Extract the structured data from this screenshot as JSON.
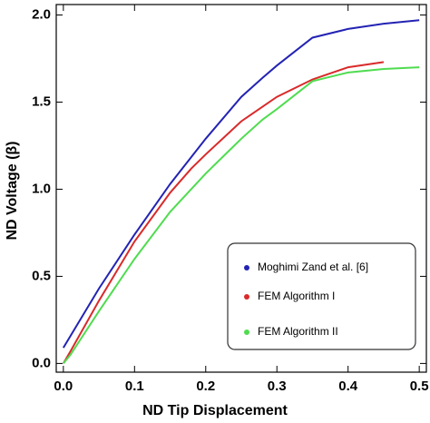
{
  "chart_data": {
    "type": "line",
    "xlabel": "ND Tip Displacement",
    "ylabel": "ND Voltage (β)",
    "xlim": [
      -0.01,
      0.51
    ],
    "ylim": [
      -0.05,
      2.06
    ],
    "xticks": [
      {
        "value": 0,
        "label": "0.0"
      },
      0.1,
      0.2,
      0.3,
      0.4,
      0.5
    ],
    "yticks": [
      {
        "value": 0,
        "label": "0.0"
      },
      0.5,
      {
        "value": 1,
        "label": "1.0"
      },
      1.5,
      {
        "value": 2,
        "label": "2.0"
      }
    ],
    "legend": "lower right",
    "series": [
      {
        "name": "Moghimi Zand et al. [6]",
        "color": "#2323b4",
        "x": [
          0,
          0.05,
          0.1,
          0.15,
          0.2,
          0.25,
          0.28,
          0.3,
          0.35,
          0.4,
          0.45,
          0.5
        ],
        "values": [
          0.09,
          0.43,
          0.74,
          1.03,
          1.29,
          1.53,
          1.64,
          1.71,
          1.87,
          1.92,
          1.95,
          1.97
        ]
      },
      {
        "name": "FEM Algorithm I",
        "color": "#d92a2a",
        "x": [
          0,
          0.01,
          0.05,
          0.1,
          0.15,
          0.18,
          0.2,
          0.25,
          0.3,
          0.35,
          0.4,
          0.45
        ],
        "values": [
          0,
          0.07,
          0.36,
          0.7,
          0.98,
          1.12,
          1.2,
          1.39,
          1.53,
          1.63,
          1.7,
          1.73
        ]
      },
      {
        "name": "FEM Algorithm II",
        "color": "#4fdc4f",
        "x": [
          0,
          0.01,
          0.05,
          0.1,
          0.15,
          0.2,
          0.25,
          0.28,
          0.3,
          0.35,
          0.4,
          0.45,
          0.5
        ],
        "values": [
          0,
          0.05,
          0.3,
          0.6,
          0.87,
          1.09,
          1.29,
          1.4,
          1.46,
          1.62,
          1.67,
          1.69,
          1.7
        ]
      }
    ]
  }
}
